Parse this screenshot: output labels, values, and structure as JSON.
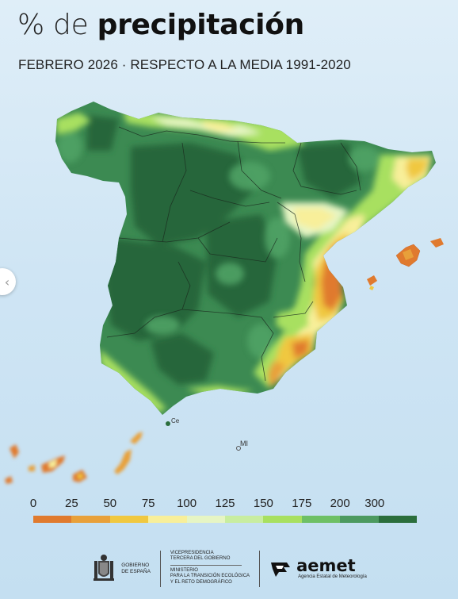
{
  "header": {
    "title_light": "% de ",
    "title_bold": "precipitación",
    "subtitle": "FEBRERO 2026 · RESPECTO A LA MEDIA 1991-2020"
  },
  "map": {
    "labels": {
      "ceuta": "Ce",
      "melilla": "MI"
    }
  },
  "legend": {
    "ticks": [
      "0",
      "25",
      "50",
      "75",
      "100",
      "125",
      "150",
      "175",
      "200",
      "300"
    ],
    "colors": [
      "#e07a2e",
      "#e8a03a",
      "#f0c840",
      "#f8ef9a",
      "#e6f5c4",
      "#c8eda0",
      "#a8e060",
      "#6ec065",
      "#4c9a60",
      "#2b6e3c"
    ]
  },
  "footer": {
    "gob_line1": "GOBIERNO",
    "gob_line2": "DE ESPAÑA",
    "vice_line1": "VICEPRESIDENCIA",
    "vice_line2": "TERCERA DEL GOBIERNO",
    "min_line1": "MINISTERIO",
    "min_line2": "PARA LA TRANSICIÓN ECOLÓGICA",
    "min_line3": "Y EL RETO DEMOGRÁFICO",
    "aemet_word": "aemet",
    "aemet_sub": "Agencia Estatal de Meteorología"
  }
}
